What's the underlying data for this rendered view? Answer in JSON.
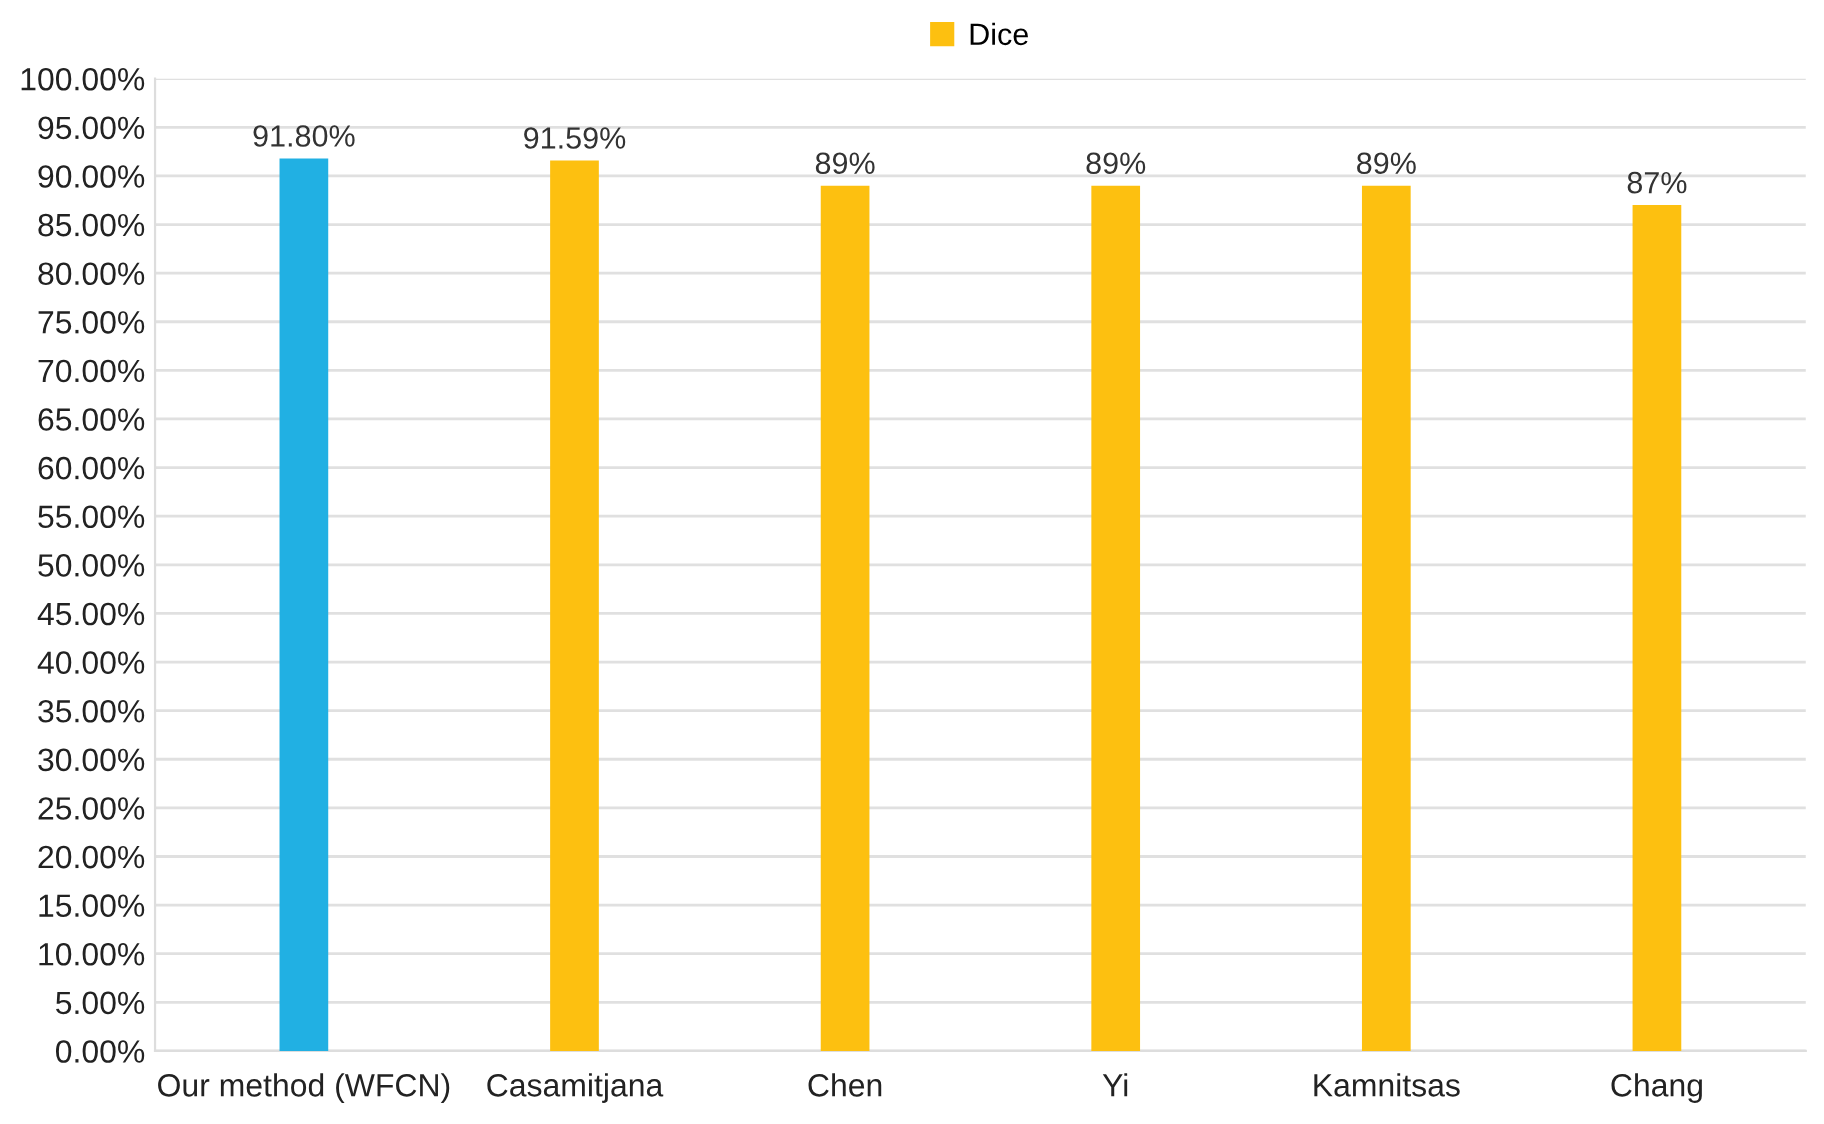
{
  "chart_data": {
    "type": "bar",
    "categories": [
      "Our method (WFCN)",
      "Casamitjana",
      "Chen",
      "Yi",
      "Kamnitsas",
      "Chang"
    ],
    "series": [
      {
        "name": "Dice",
        "color": "#fdc010",
        "colors": [
          "#21b0e3",
          "#fdc010",
          "#fdc010",
          "#fdc010",
          "#fdc010",
          "#fdc010"
        ],
        "values": [
          91.8,
          91.59,
          89,
          89,
          89,
          87
        ],
        "value_labels": [
          "91.80%",
          "91.59%",
          "89%",
          "89%",
          "89%",
          "87%"
        ]
      }
    ],
    "ylim": [
      0,
      100
    ],
    "yticks": [
      {
        "value": 0,
        "label": "0.00%"
      },
      {
        "value": 5,
        "label": "5.00%"
      },
      {
        "value": 10,
        "label": "10.00%"
      },
      {
        "value": 15,
        "label": "15.00%"
      },
      {
        "value": 20,
        "label": "20.00%"
      },
      {
        "value": 25,
        "label": "25.00%"
      },
      {
        "value": 30,
        "label": "30.00%"
      },
      {
        "value": 35,
        "label": "35.00%"
      },
      {
        "value": 40,
        "label": "40.00%"
      },
      {
        "value": 45,
        "label": "45.00%"
      },
      {
        "value": 50,
        "label": "50.00%"
      },
      {
        "value": 55,
        "label": "55.00%"
      },
      {
        "value": 60,
        "label": "60.00%"
      },
      {
        "value": 65,
        "label": "65.00%"
      },
      {
        "value": 70,
        "label": "70.00%"
      },
      {
        "value": 75,
        "label": "75.00%"
      },
      {
        "value": 80,
        "label": "80.00%"
      },
      {
        "value": 85,
        "label": "85.00%"
      },
      {
        "value": 90,
        "label": "90.00%"
      },
      {
        "value": 95,
        "label": "95.00%"
      },
      {
        "value": 100,
        "label": "100.00%"
      }
    ],
    "grid": "y",
    "legend": "top"
  }
}
